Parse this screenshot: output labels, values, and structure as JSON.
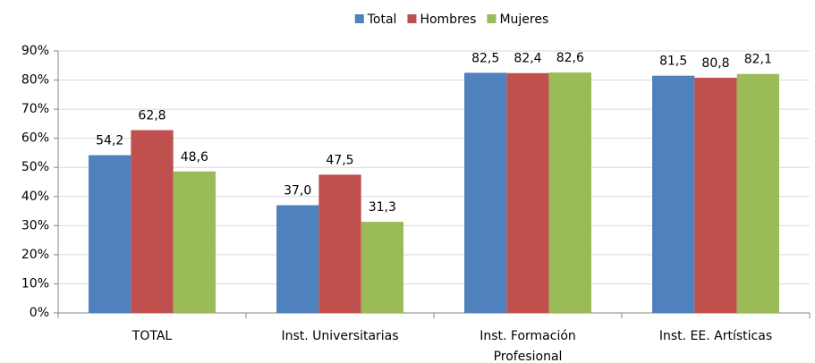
{
  "chart_data": {
    "type": "bar",
    "categories": [
      "TOTAL",
      "Inst. Universitarias",
      "Inst. Formación Profesional",
      "Inst. EE. Artísticas"
    ],
    "series": [
      {
        "name": "Total",
        "color": "#4f81bd",
        "values": [
          54.2,
          37.0,
          82.5,
          81.5
        ],
        "value_labels": [
          "54,2",
          "37,0",
          "82,5",
          "81,5"
        ]
      },
      {
        "name": "Hombres",
        "color": "#c0504d",
        "values": [
          62.8,
          47.5,
          82.4,
          80.8
        ],
        "value_labels": [
          "62,8",
          "47,5",
          "82,4",
          "80,8"
        ]
      },
      {
        "name": "Mujeres",
        "color": "#9bbb59",
        "values": [
          48.6,
          31.3,
          82.6,
          82.1
        ],
        "value_labels": [
          "48,6",
          "31,3",
          "82,6",
          "82,1"
        ]
      }
    ],
    "ylim": [
      0,
      90
    ],
    "yticks": [
      {
        "value": 0,
        "label": "0%"
      },
      {
        "value": 10,
        "label": "10%"
      },
      {
        "value": 20,
        "label": "20%"
      },
      {
        "value": 30,
        "label": "30%"
      },
      {
        "value": 40,
        "label": "40%"
      },
      {
        "value": 50,
        "label": "50%"
      },
      {
        "value": 60,
        "label": "60%"
      },
      {
        "value": 70,
        "label": "70%"
      },
      {
        "value": 80,
        "label": "80%"
      },
      {
        "value": 90,
        "label": "90%"
      }
    ],
    "grid": true,
    "legend": "top"
  }
}
